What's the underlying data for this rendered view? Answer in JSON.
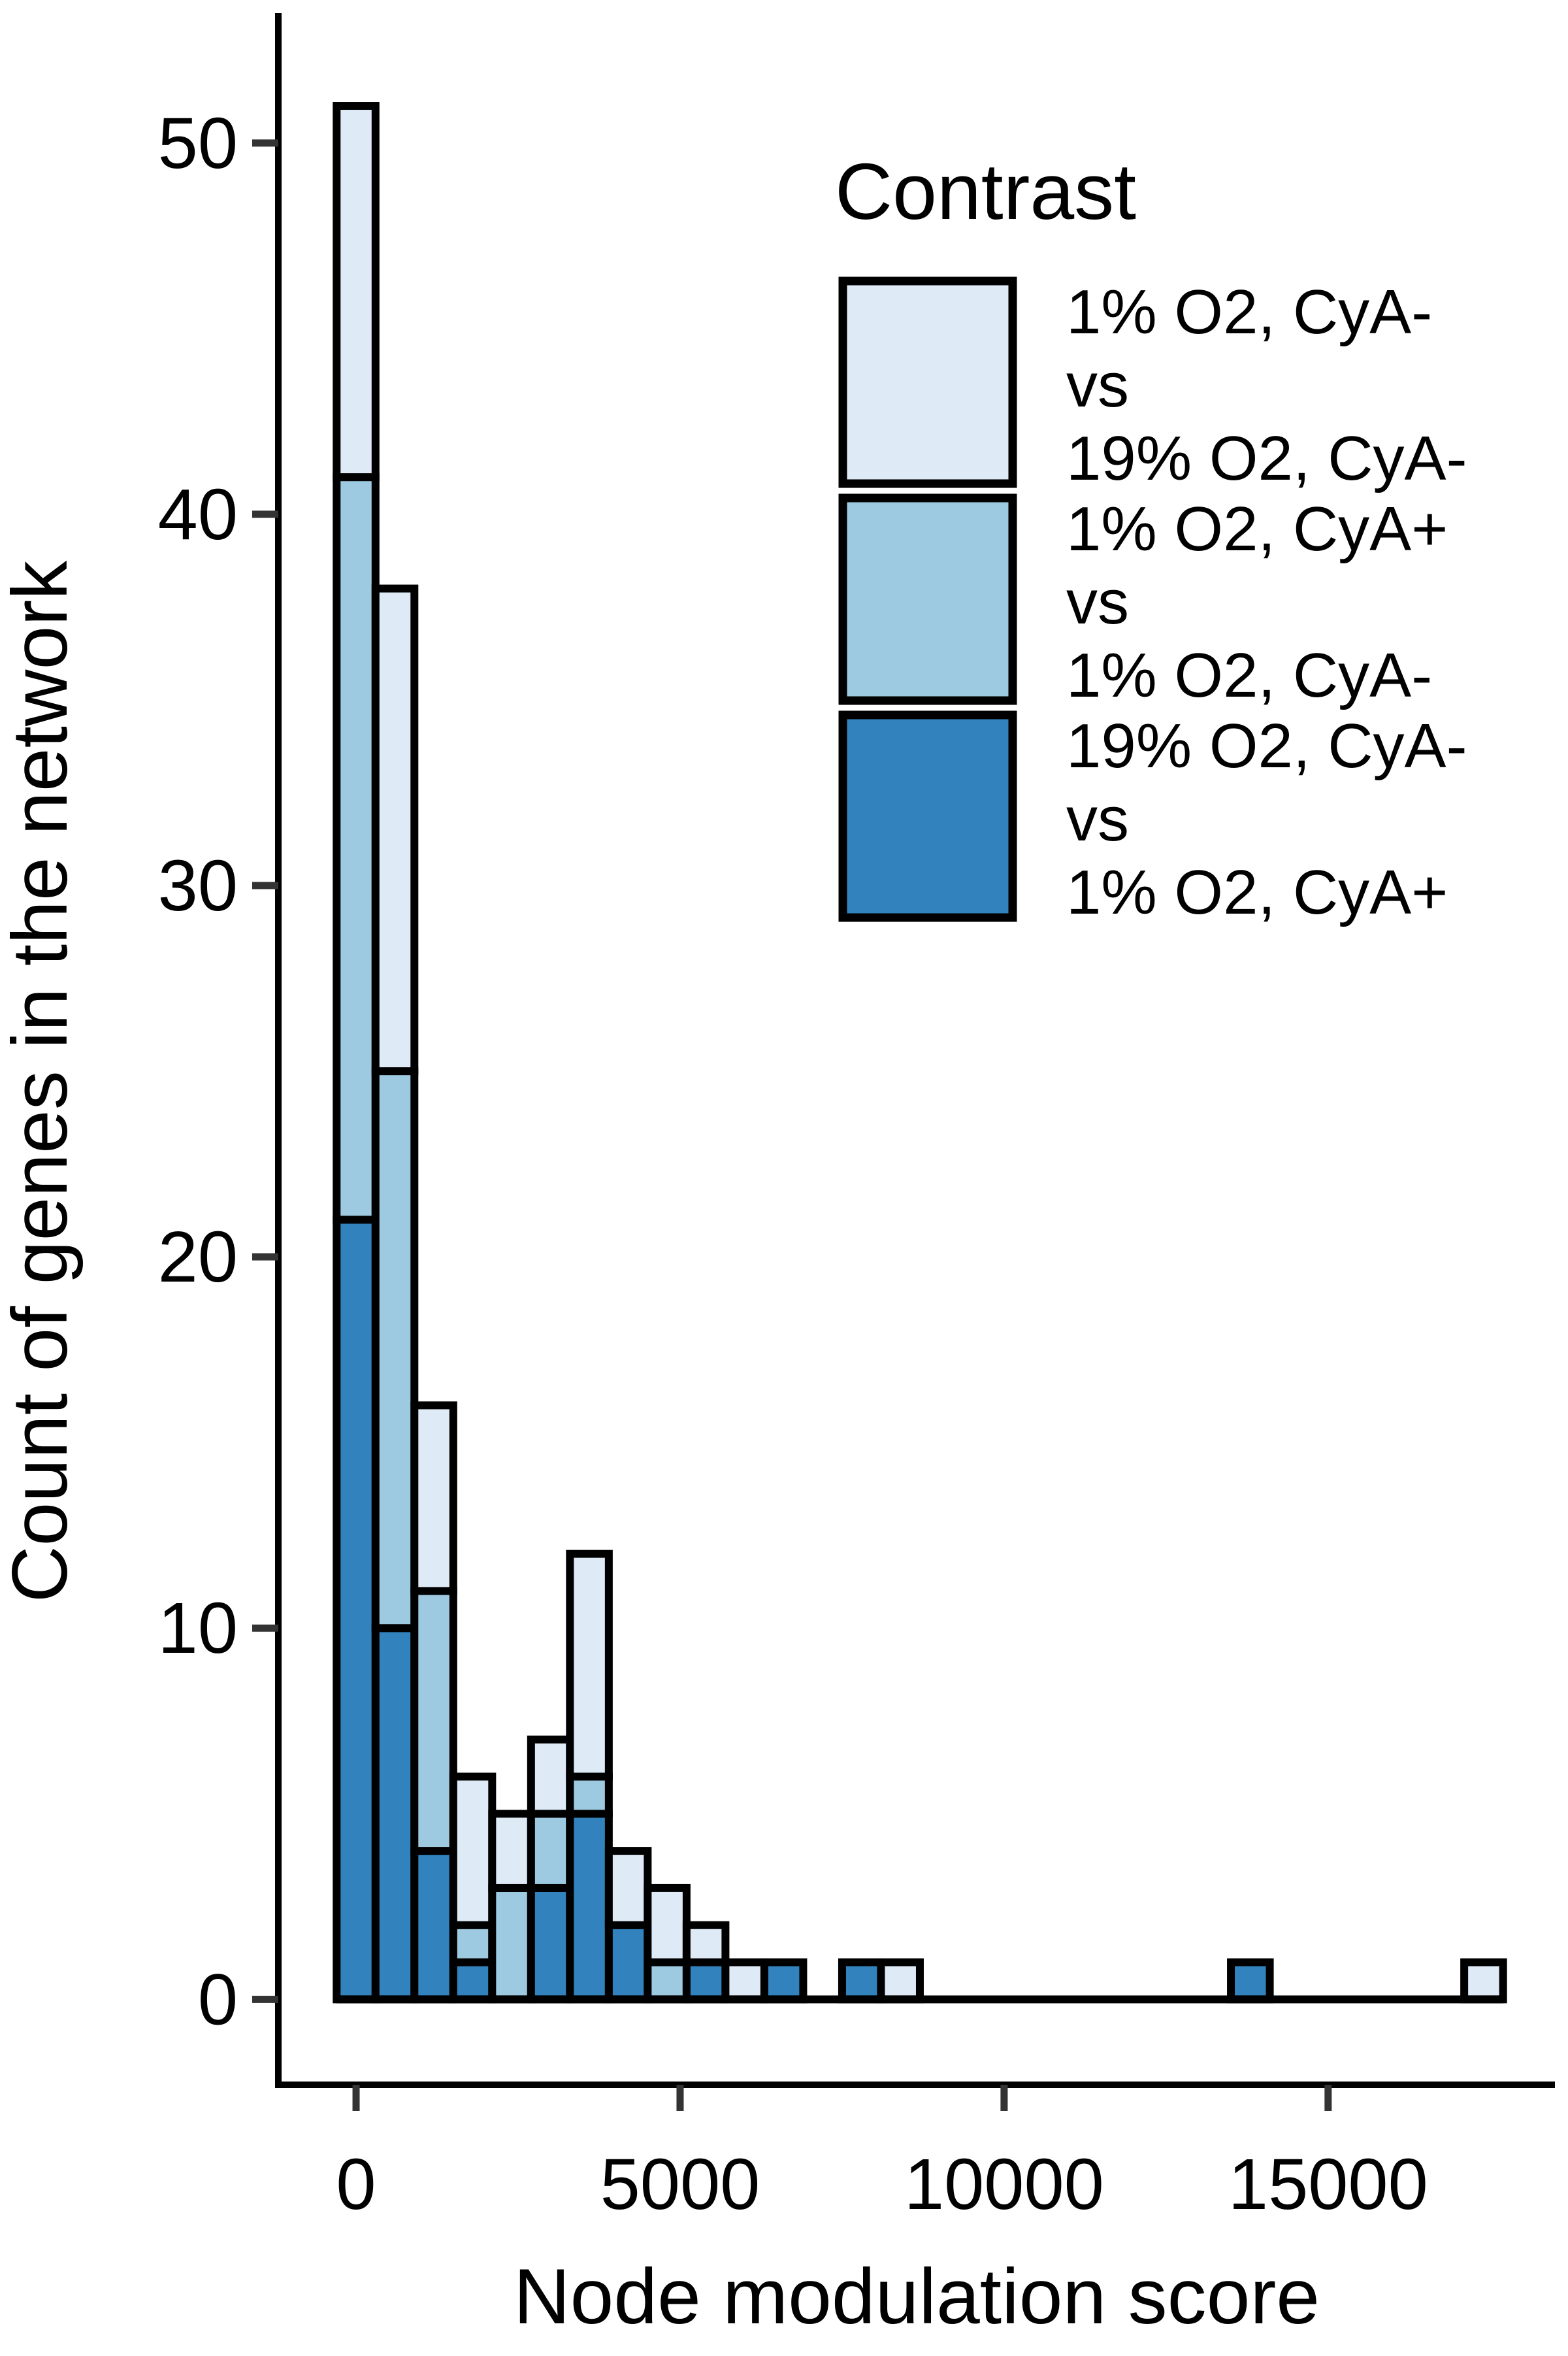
{
  "chart_data": {
    "type": "bar",
    "stacked": true,
    "xlabel": "Node modulation score",
    "ylabel": "Count of genes in the network",
    "xlim": [
      -1200,
      18500
    ],
    "ylim": [
      -2.3,
      53.5
    ],
    "x_ticks": [
      0,
      5000,
      10000,
      15000
    ],
    "y_ticks": [
      0,
      10,
      20,
      30,
      40,
      50
    ],
    "bin_width": 600,
    "grid": false,
    "legend": {
      "title": "Contrast",
      "position": "top-right",
      "entries": [
        {
          "lines": [
            "1% O2, CyA-",
            "vs",
            "19% O2, CyA-"
          ],
          "color": "#deebf7"
        },
        {
          "lines": [
            "1% O2, CyA+",
            "vs",
            "1% O2, CyA-"
          ],
          "color": "#9ecae1"
        },
        {
          "lines": [
            "19% O2, CyA-",
            "vs",
            "1% O2, CyA+"
          ],
          "color": "#3182bd"
        }
      ]
    },
    "bins": [
      0,
      600,
      1200,
      1800,
      2400,
      3000,
      3600,
      4200,
      4800,
      5400,
      6000,
      6600,
      7200,
      7800,
      8400,
      9000,
      9600,
      10200,
      10800,
      11400,
      12000,
      12600,
      13200,
      13800,
      14400,
      15000,
      15600,
      16200,
      16800,
      17400
    ],
    "series": [
      {
        "name": "1% O2, CyA-\nvs\n19% O2, CyA-",
        "color": "#deebf7",
        "values": [
          10,
          13,
          5,
          4,
          2,
          2,
          6,
          2,
          2,
          1,
          1,
          0,
          0,
          0,
          1,
          0,
          0,
          0,
          0,
          0,
          0,
          0,
          0,
          0,
          0,
          0,
          0,
          0,
          0,
          1
        ]
      },
      {
        "name": "1% O2, CyA+\nvs\n1% O2, CyA-",
        "color": "#9ecae1",
        "values": [
          20,
          15,
          7,
          1,
          3,
          2,
          1,
          0,
          1,
          0,
          0,
          0,
          0,
          0,
          0,
          0,
          0,
          0,
          0,
          0,
          0,
          0,
          0,
          0,
          0,
          0,
          0,
          0,
          0,
          0
        ]
      },
      {
        "name": "19% O2, CyA-\nvs\n1% O2, CyA+",
        "color": "#3182bd",
        "values": [
          21,
          10,
          4,
          1,
          0,
          3,
          5,
          2,
          0,
          1,
          0,
          1,
          0,
          1,
          0,
          0,
          0,
          0,
          0,
          0,
          0,
          0,
          0,
          1,
          0,
          0,
          0,
          0,
          0,
          0
        ]
      }
    ]
  }
}
